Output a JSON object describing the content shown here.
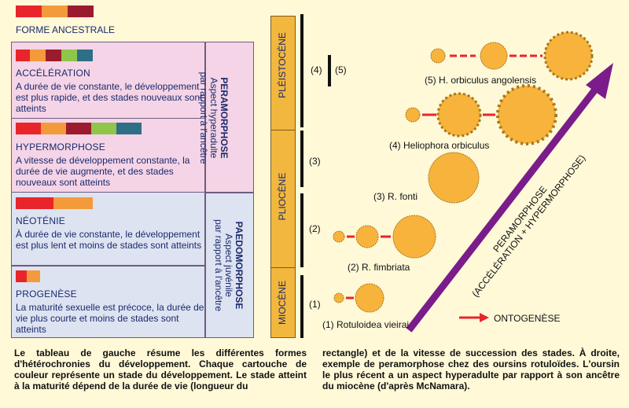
{
  "colors": {
    "red": "#e8252b",
    "orange": "#f39a3b",
    "maroon": "#9b1b2e",
    "green": "#8fc54b",
    "teal": "#2e6f86",
    "pinkbox": "#f4d4e6",
    "bluebox": "#dde3f1",
    "yellowbar": "#f2b73e",
    "urchin": "#f7b33c",
    "purple": "#7a1c8a"
  },
  "ancestral": {
    "title": "FORME ANCESTRALE",
    "swatches": [
      "red",
      "orange",
      "maroon"
    ]
  },
  "boxes": [
    {
      "title": "ACCÉLÉRATION",
      "text": "A durée de vie constante, le développement est plus rapide, et des stades nouveaux sont atteints",
      "swatches": [
        "red",
        "orange",
        "maroon",
        "green",
        "teal"
      ]
    },
    {
      "title": "HYPERMORPHOSE",
      "text": "A vitesse de développement constante, la durée de vie augmente, et des stades nouveaux sont atteints",
      "swatches": [
        "red",
        "orange",
        "maroon",
        "green",
        "teal"
      ]
    },
    {
      "title": "NÉOTÉNIE",
      "text": "À durée de vie constante, le développement est plus lent et moins de stades sont atteints",
      "swatches": [
        "red",
        "orange"
      ]
    },
    {
      "title": "PROGENÈSE",
      "text": "La maturité sexuelle est précoce, la durée de vie plus courte et moins de stades sont atteints",
      "swatches": [
        "red",
        "orange"
      ]
    }
  ],
  "side": {
    "peramorphose": {
      "title": "PERAMORPHOSE",
      "sub1": "Aspect hyperadulte",
      "sub2": "par rapport à l'ancêtre"
    },
    "paedomorphose": {
      "title": "PAEDOMORPHOSE",
      "sub1": "Aspect juvénile",
      "sub2": "par rapport à l'ancêtre"
    }
  },
  "epochs": [
    {
      "label": "PLÉISTOCÈNE"
    },
    {
      "label": "PLIOCÈNE"
    },
    {
      "label": "MIOCÈNE"
    }
  ],
  "markers": [
    "(4)",
    "(5)",
    "(3)",
    "(2)",
    "(1)"
  ],
  "species": [
    {
      "label": "(5) H. orbiculus angolensis"
    },
    {
      "label": "(4) Heliophora orbiculus"
    },
    {
      "label": "(3) R. fonti"
    },
    {
      "label": "(2) R. fimbriata"
    },
    {
      "label": "(1) Rotuloidea vieirai"
    }
  ],
  "arrow_label": {
    "line1": "PERAMORPHOSE",
    "line2": "(ACCÉLÉRATION + HYPERMORPHOSE)"
  },
  "legend": {
    "label": "ONTOGENÈSE"
  },
  "captions": {
    "left": "Le tableau de gauche résume les différentes formes d'hétérochronies du développement. Chaque cartouche de couleur représente un stade du développement. Le stade atteint à la maturité dépend de la durée de vie (longueur du",
    "right": "rectangle) et de la vitesse de succession des stades. À droite, exemple de peramorphose chez des oursins rotuloïdes. L'oursin le plus récent a un aspect hyperadulte par rapport à son ancêtre du miocène (d'après McNamara)."
  }
}
